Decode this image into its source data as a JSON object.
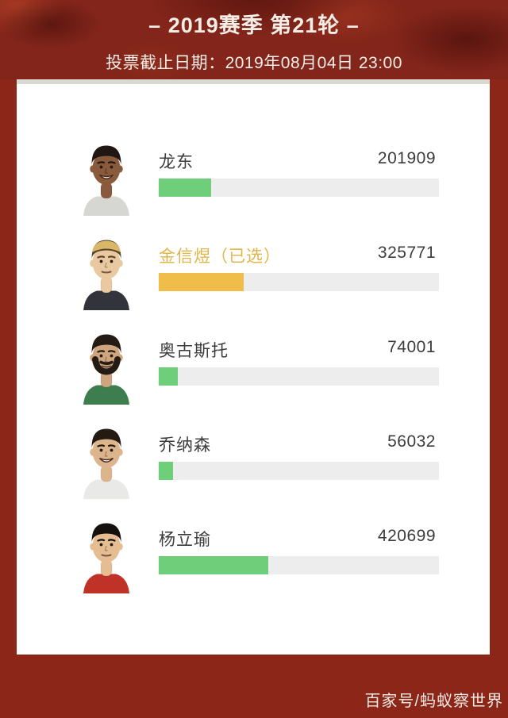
{
  "header": {
    "title": "– 2019赛季 第21轮 –",
    "deadline_label": "投票截止日期：2019年08月04日 23:00"
  },
  "poll": {
    "players": [
      {
        "name": "龙东",
        "votes": "201909",
        "bar_percent": 18.7,
        "bar_color": "#6FCE79",
        "selected": false,
        "avatar": {
          "skin": "#8A5A3C",
          "hair": "#201712",
          "shirt": "#D6D6D2",
          "beard": false,
          "smile": true
        }
      },
      {
        "name": "金信煜（已选）",
        "votes": "325771",
        "bar_percent": 30.2,
        "bar_color": "#F0BC4A",
        "selected": true,
        "avatar": {
          "skin": "#EAC9A0",
          "hair": "#59452B",
          "hair_top": "#D8B766",
          "shirt": "#33333B",
          "beard": false,
          "smile": false
        }
      },
      {
        "name": "奥古斯托",
        "votes": "74001",
        "bar_percent": 6.9,
        "bar_color": "#6FCE79",
        "selected": false,
        "avatar": {
          "skin": "#CFA57E",
          "hair": "#241B14",
          "shirt": "#3E7D4E",
          "beard": true,
          "smile": false
        }
      },
      {
        "name": "乔纳森",
        "votes": "56032",
        "bar_percent": 5.2,
        "bar_color": "#6FCE79",
        "selected": false,
        "avatar": {
          "skin": "#DDB58C",
          "hair": "#241A12",
          "shirt": "#E9E9E7",
          "beard": false,
          "smile": true
        }
      },
      {
        "name": "杨立瑜",
        "votes": "420699",
        "bar_percent": 39.0,
        "bar_color": "#6FCE79",
        "selected": false,
        "avatar": {
          "skin": "#E6BD93",
          "hair": "#15100D",
          "shirt": "#C03227",
          "beard": false,
          "smile": false
        }
      }
    ],
    "colors": {
      "green_bar": "#6FCE79",
      "gold_bar": "#F0BC4A",
      "selected_name_text": "#E0B64B",
      "bar_track": "#EDEDED"
    }
  },
  "footer": {
    "credit": "百家号/蚂蚁察世界"
  },
  "colors": {
    "background_red": "#8B2619",
    "card_white": "#FFFFFF",
    "card_top_strip": "#D9D8D3"
  }
}
